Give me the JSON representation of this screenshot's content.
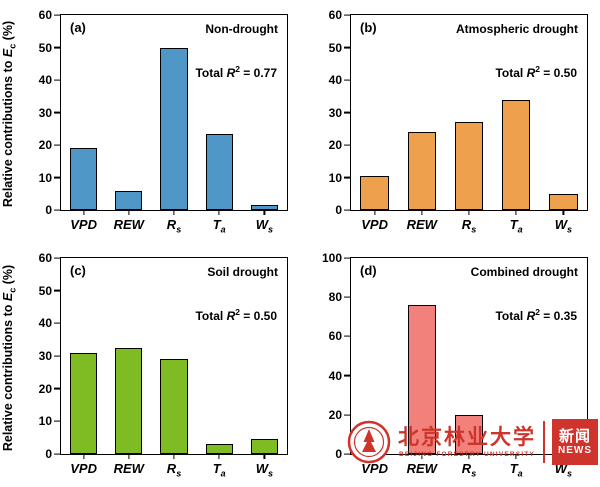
{
  "figure": {
    "y_axis_label": {
      "pre": "Relative contributions to ",
      "sym": "E",
      "sub": "c",
      "post": " (%)"
    }
  },
  "watermark": {
    "cn_name": "北京林业大学",
    "en_name": "BEIJING FORESTRY UNIVERSITY",
    "news_cn": "新闻",
    "news_en": "NEWS",
    "color": "#ce342b"
  },
  "chart_data": [
    {
      "type": "bar",
      "panel_label": "(a)",
      "title": "Non-drought",
      "annotation": {
        "prefix": "Total ",
        "symbol": "R",
        "sup": "2",
        "rest": " = 0.77"
      },
      "categories": [
        {
          "base": "VPD",
          "sub": ""
        },
        {
          "base": "REW",
          "sub": ""
        },
        {
          "base": "R",
          "sub": "s"
        },
        {
          "base": "T",
          "sub": "a"
        },
        {
          "base": "W",
          "sub": "s"
        }
      ],
      "values": [
        19,
        6,
        50,
        23.5,
        1.5
      ],
      "ylim": [
        0,
        60
      ],
      "yticks": [
        0,
        10,
        20,
        30,
        40,
        50,
        60
      ],
      "bar_color": "#4f97c7"
    },
    {
      "type": "bar",
      "panel_label": "(b)",
      "title": "Atmospheric drought",
      "annotation": {
        "prefix": "Total ",
        "symbol": "R",
        "sup": "2",
        "rest": " = 0.50"
      },
      "categories": [
        {
          "base": "VPD",
          "sub": ""
        },
        {
          "base": "REW",
          "sub": ""
        },
        {
          "base": "R",
          "sub": "s"
        },
        {
          "base": "T",
          "sub": "a"
        },
        {
          "base": "W",
          "sub": "s"
        }
      ],
      "values": [
        10.5,
        24,
        27,
        34,
        5
      ],
      "ylim": [
        0,
        60
      ],
      "yticks": [
        0,
        10,
        20,
        30,
        40,
        50,
        60
      ],
      "bar_color": "#efa04d"
    },
    {
      "type": "bar",
      "panel_label": "(c)",
      "title": "Soil drought",
      "annotation": {
        "prefix": "Total ",
        "symbol": "R",
        "sup": "2",
        "rest": " = 0.50"
      },
      "categories": [
        {
          "base": "VPD",
          "sub": ""
        },
        {
          "base": "REW",
          "sub": ""
        },
        {
          "base": "R",
          "sub": "s"
        },
        {
          "base": "T",
          "sub": "a"
        },
        {
          "base": "W",
          "sub": "s"
        }
      ],
      "values": [
        31,
        32.5,
        29,
        3,
        4.5
      ],
      "ylim": [
        0,
        60
      ],
      "yticks": [
        0,
        10,
        20,
        30,
        40,
        50,
        60
      ],
      "bar_color": "#7fbb22"
    },
    {
      "type": "bar",
      "panel_label": "(d)",
      "title": "Combined drought",
      "annotation": {
        "prefix": "Total ",
        "symbol": "R",
        "sup": "2",
        "rest": " = 0.35"
      },
      "categories": [
        {
          "base": "VPD",
          "sub": ""
        },
        {
          "base": "REW",
          "sub": ""
        },
        {
          "base": "R",
          "sub": "s"
        },
        {
          "base": "T",
          "sub": "a"
        },
        {
          "base": "W",
          "sub": "s"
        }
      ],
      "values": [
        0,
        76,
        20,
        0,
        0
      ],
      "ylim": [
        0,
        100
      ],
      "yticks": [
        0,
        20,
        40,
        60,
        80,
        100
      ],
      "bar_color": "#f2807b"
    }
  ]
}
